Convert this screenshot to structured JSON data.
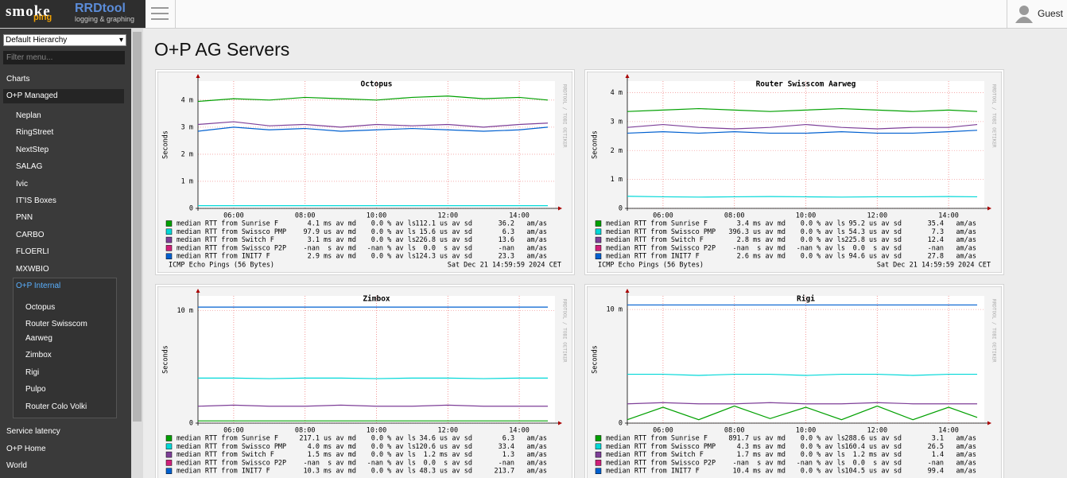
{
  "header": {
    "logo_smoke": "smoke",
    "logo_ping": "ping",
    "logo_rrd": "RRDtool",
    "logo_rrd_sub": "logging & graphing",
    "user": "Guest"
  },
  "sidebar": {
    "hierarchy": "Default Hierarchy",
    "filter_placeholder": "Filter menu...",
    "charts": "Charts",
    "group": "O+P Managed",
    "items": [
      "Neplan",
      "RingStreet",
      "NextStep",
      "SALAG",
      "Ivic",
      "IT'IS Boxes",
      "PNN",
      "CARBO",
      "FLOERLI",
      "MXWBIO"
    ],
    "active": "O+P Internal",
    "subitems": [
      "Octopus",
      "Router Swisscom Aarweg",
      "Zimbox",
      "Rigi",
      "Pulpo",
      "Router Colo Volki"
    ],
    "bottom": [
      "Service latency",
      "O+P Home",
      "World"
    ]
  },
  "page_title": "O+P AG Servers",
  "graphs": [
    {
      "title": "Octopus",
      "ylabel": "Seconds",
      "watermark": "RRDTOOL / TOBI OETIKER",
      "ylim": [
        0,
        0.0047
      ],
      "yticks": [
        0,
        {
          "value": 0.001,
          "label": "1 m"
        },
        {
          "value": 0.002,
          "label": "2 m"
        },
        {
          "value": 0.003,
          "label": "3 m"
        },
        {
          "value": 0.004,
          "label": "4 m"
        }
      ],
      "xlim": [
        5,
        15
      ],
      "xticks": [
        {
          "value": 6,
          "label": "06:00"
        },
        {
          "value": 8,
          "label": "08:00"
        },
        {
          "value": 10,
          "label": "10:00"
        },
        {
          "value": 12,
          "label": "12:00"
        },
        {
          "value": 14,
          "label": "14:00"
        }
      ],
      "x": [
        5,
        6,
        7,
        8,
        9,
        10,
        11,
        12,
        13,
        14,
        14.8
      ],
      "series": [
        {
          "name": "median RTT from Sunrise F",
          "color": "#00a000",
          "md": "4.1 ms av md",
          "ls": "0.0 % av ls",
          "sd": "112.1 us av sd",
          "am": "36.2   am/as",
          "values": [
            0.00395,
            0.00405,
            0.004,
            0.0041,
            0.00405,
            0.004,
            0.0041,
            0.00415,
            0.00405,
            0.0041,
            0.004
          ]
        },
        {
          "name": "median RTT from Swissco PMP",
          "color": "#00d8d8",
          "md": "97.9 us av md",
          "ls": "0.0 % av ls",
          "sd": "15.6 us av sd",
          "am": "6.3   am/as",
          "values": [
            0.0001,
            0.0001,
            0.0001,
            0.0001,
            0.0001,
            0.0001,
            0.0001,
            0.0001,
            0.0001,
            0.0001,
            0.0001
          ]
        },
        {
          "name": "median RTT from Switch F",
          "color": "#7e3f98",
          "md": "3.1 ms av md",
          "ls": "0.0 % av ls",
          "sd": "226.8 us av sd",
          "am": "13.6   am/as",
          "values": [
            0.0031,
            0.0032,
            0.00305,
            0.0031,
            0.003,
            0.0031,
            0.00305,
            0.0031,
            0.003,
            0.0031,
            0.00315
          ]
        },
        {
          "name": "median RTT from Swissco P2P",
          "color": "#d0207a",
          "md": "-nan  s av md",
          "ls": "-nan % av ls",
          "sd": "0.0  s av sd",
          "am": "-nan   am/as"
        },
        {
          "name": "median RTT from INIT7 F",
          "color": "#0060d0",
          "md": "2.9 ms av md",
          "ls": "0.0 % av ls",
          "sd": "124.3 us av sd",
          "am": "23.3   am/as",
          "values": [
            0.00285,
            0.003,
            0.0029,
            0.00295,
            0.00285,
            0.0029,
            0.00295,
            0.0029,
            0.00285,
            0.0029,
            0.003
          ]
        }
      ],
      "footer_left": "ICMP Echo Pings (56 Bytes)",
      "footer_right": "Sat Dec 21 14:59:59 2024 CET"
    },
    {
      "title": "Router Swisscom Aarweg",
      "ylabel": "Seconds",
      "watermark": "RRDTOOL / TOBI OETIKER",
      "ylim": [
        0,
        0.0044
      ],
      "yticks": [
        0,
        {
          "value": 0.001,
          "label": "1 m"
        },
        {
          "value": 0.002,
          "label": "2 m"
        },
        {
          "value": 0.003,
          "label": "3 m"
        },
        {
          "value": 0.004,
          "label": "4 m"
        }
      ],
      "xlim": [
        5,
        15
      ],
      "xticks": [
        {
          "value": 6,
          "label": "06:00"
        },
        {
          "value": 8,
          "label": "08:00"
        },
        {
          "value": 10,
          "label": "10:00"
        },
        {
          "value": 12,
          "label": "12:00"
        },
        {
          "value": 14,
          "label": "14:00"
        }
      ],
      "x": [
        5,
        6,
        7,
        8,
        9,
        10,
        11,
        12,
        13,
        14,
        14.8
      ],
      "series": [
        {
          "name": "median RTT from Sunrise F",
          "color": "#00a000",
          "md": "3.4 ms av md",
          "ls": "0.0 % av ls",
          "sd": "95.2 us av sd",
          "am": "35.4   am/as",
          "values": [
            0.00335,
            0.0034,
            0.00345,
            0.0034,
            0.00335,
            0.0034,
            0.00345,
            0.0034,
            0.00335,
            0.0034,
            0.00335
          ]
        },
        {
          "name": "median RTT from Swissco PMP",
          "color": "#00d8d8",
          "md": "396.3 us av md",
          "ls": "0.0 % av ls",
          "sd": "54.3 us av sd",
          "am": "7.3   am/as",
          "values": [
            0.00042,
            0.0004,
            0.00039,
            0.0004,
            0.00041,
            0.0004,
            0.00039,
            0.0004,
            0.0004,
            0.00041,
            0.0004
          ]
        },
        {
          "name": "median RTT from Switch F",
          "color": "#7e3f98",
          "md": "2.8 ms av md",
          "ls": "0.0 % av ls",
          "sd": "225.8 us av sd",
          "am": "12.4   am/as",
          "values": [
            0.0028,
            0.0029,
            0.0028,
            0.00275,
            0.0028,
            0.0029,
            0.0028,
            0.00275,
            0.0028,
            0.0028,
            0.0029
          ]
        },
        {
          "name": "median RTT from Swissco P2P",
          "color": "#d0207a",
          "md": "-nan  s av md",
          "ls": "-nan % av ls",
          "sd": "0.0  s av sd",
          "am": "-nan   am/as"
        },
        {
          "name": "median RTT from INIT7 F",
          "color": "#0060d0",
          "md": "2.6 ms av md",
          "ls": "0.0 % av ls",
          "sd": "94.6 us av sd",
          "am": "27.8   am/as",
          "values": [
            0.0026,
            0.00265,
            0.0026,
            0.00265,
            0.0026,
            0.0026,
            0.00265,
            0.0026,
            0.0026,
            0.00265,
            0.0027
          ]
        }
      ],
      "footer_left": "ICMP Echo Pings (56 Bytes)",
      "footer_right": "Sat Dec 21 14:59:59 2024 CET"
    },
    {
      "title": "Zimbox",
      "ylabel": "Seconds",
      "watermark": "RRDTOOL / TOBI OETIKER",
      "ylim": [
        0,
        0.0113
      ],
      "yticks": [
        0,
        {
          "value": 0.01,
          "label": "10 m"
        }
      ],
      "xlim": [
        5,
        15
      ],
      "xticks": [
        {
          "value": 6,
          "label": "06:00"
        },
        {
          "value": 8,
          "label": "08:00"
        },
        {
          "value": 10,
          "label": "10:00"
        },
        {
          "value": 12,
          "label": "12:00"
        },
        {
          "value": 14,
          "label": "14:00"
        }
      ],
      "x": [
        5,
        6,
        7,
        8,
        9,
        10,
        11,
        12,
        13,
        14,
        14.8
      ],
      "series": [
        {
          "name": "median RTT from Sunrise F",
          "color": "#00a000",
          "md": "217.1 us av md",
          "ls": "0.0 % av ls",
          "sd": "34.6 us av sd",
          "am": "6.3   am/as",
          "values": [
            0.0002,
            0.0002,
            0.0002,
            0.0002,
            0.0002,
            0.0002,
            0.0002,
            0.0002,
            0.0002,
            0.0002,
            0.0002
          ]
        },
        {
          "name": "median RTT from Swissco PMP",
          "color": "#00d8d8",
          "md": "4.0 ms av md",
          "ls": "0.0 % av ls",
          "sd": "120.6 us av sd",
          "am": "33.4   am/as",
          "values": [
            0.004,
            0.004,
            0.00395,
            0.004,
            0.004,
            0.00395,
            0.004,
            0.004,
            0.00395,
            0.004,
            0.004
          ]
        },
        {
          "name": "median RTT from Switch F",
          "color": "#7e3f98",
          "md": "1.5 ms av md",
          "ls": "0.0 % av ls",
          "sd": "1.2 ms av sd",
          "am": "1.3   am/as",
          "values": [
            0.0015,
            0.0016,
            0.0015,
            0.0015,
            0.0016,
            0.0015,
            0.0015,
            0.0016,
            0.0015,
            0.0015,
            0.0015
          ]
        },
        {
          "name": "median RTT from Swissco P2P",
          "color": "#d0207a",
          "md": "-nan  s av md",
          "ls": "-nan % av ls",
          "sd": "0.0  s av sd",
          "am": "-nan   am/as"
        },
        {
          "name": "median RTT from INIT7 F",
          "color": "#0060d0",
          "md": "10.3 ms av md",
          "ls": "0.0 % av ls",
          "sd": "48.3 us av sd",
          "am": "213.7   am/as",
          "values": [
            0.0103,
            0.0103,
            0.0103,
            0.0103,
            0.0103,
            0.0103,
            0.0103,
            0.0103,
            0.0103,
            0.0103,
            0.0103
          ]
        }
      ]
    },
    {
      "title": "Rigi",
      "ylabel": "Seconds",
      "watermark": "RRDTOOL / TOBI OETIKER",
      "ylim": [
        0,
        0.0112
      ],
      "yticks": [
        0,
        {
          "value": 0.01,
          "label": "10 m"
        }
      ],
      "xlim": [
        5,
        15
      ],
      "xticks": [
        {
          "value": 6,
          "label": "06:00"
        },
        {
          "value": 8,
          "label": "08:00"
        },
        {
          "value": 10,
          "label": "10:00"
        },
        {
          "value": 12,
          "label": "12:00"
        },
        {
          "value": 14,
          "label": "14:00"
        }
      ],
      "x": [
        5,
        6,
        7,
        8,
        9,
        10,
        11,
        12,
        13,
        14,
        14.8
      ],
      "series": [
        {
          "name": "median RTT from Sunrise F",
          "color": "#00a000",
          "md": "891.7 us av md",
          "ls": "0.0 % av ls",
          "sd": "288.6 us av sd",
          "am": "3.1   am/as",
          "values": [
            0.0003,
            0.0014,
            0.0003,
            0.0015,
            0.0004,
            0.0014,
            0.0003,
            0.0015,
            0.0003,
            0.0014,
            0.0005
          ]
        },
        {
          "name": "median RTT from Swissco PMP",
          "color": "#00d8d8",
          "md": "4.3 ms av md",
          "ls": "0.0 % av ls",
          "sd": "160.4 us av sd",
          "am": "26.5   am/as",
          "values": [
            0.0043,
            0.0043,
            0.0042,
            0.0043,
            0.0043,
            0.0042,
            0.0043,
            0.0043,
            0.0042,
            0.0043,
            0.0043
          ]
        },
        {
          "name": "median RTT from Switch F",
          "color": "#7e3f98",
          "md": "1.7 ms av md",
          "ls": "0.0 % av ls",
          "sd": "1.2 ms av sd",
          "am": "1.4   am/as",
          "values": [
            0.0017,
            0.0018,
            0.0017,
            0.0017,
            0.0018,
            0.0017,
            0.0017,
            0.0018,
            0.0017,
            0.0017,
            0.0017
          ]
        },
        {
          "name": "median RTT from Swissco P2P",
          "color": "#d0207a",
          "md": "-nan  s av md",
          "ls": "-nan % av ls",
          "sd": "0.0  s av sd",
          "am": "-nan   am/as"
        },
        {
          "name": "median RTT from INIT7 F",
          "color": "#0060d0",
          "md": "10.4 ms av md",
          "ls": "0.0 % av ls",
          "sd": "104.5 us av sd",
          "am": "99.4   am/as",
          "values": [
            0.0104,
            0.0104,
            0.0104,
            0.0104,
            0.0104,
            0.0104,
            0.0104,
            0.0104,
            0.0104,
            0.0104,
            0.0104
          ]
        }
      ]
    }
  ]
}
